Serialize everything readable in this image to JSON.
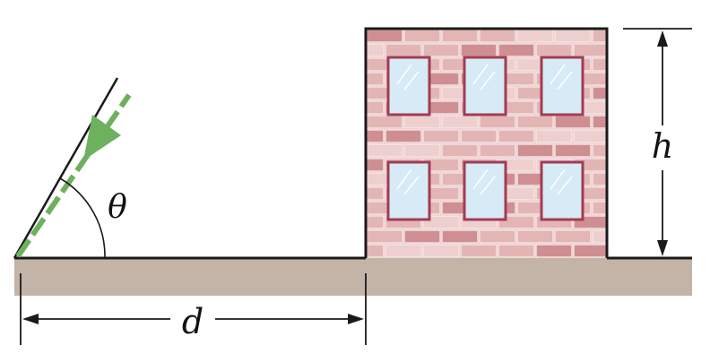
{
  "labels": {
    "angle": "θ",
    "distance": "d",
    "height": "h"
  },
  "colors": {
    "ground": "#c4b4a8",
    "outline": "#1a1a1a",
    "brick_face": "#e3b5b5",
    "brick_dark": "#cf8f92",
    "brick_light": "#eecfcf",
    "mortar": "#f6e6e6",
    "window_glass": "#d6ebf5",
    "window_frame": "#a33b53",
    "ray": "#6db05d"
  },
  "icons": {
    "ray_arrow": "arrowhead-down-left-icon"
  }
}
